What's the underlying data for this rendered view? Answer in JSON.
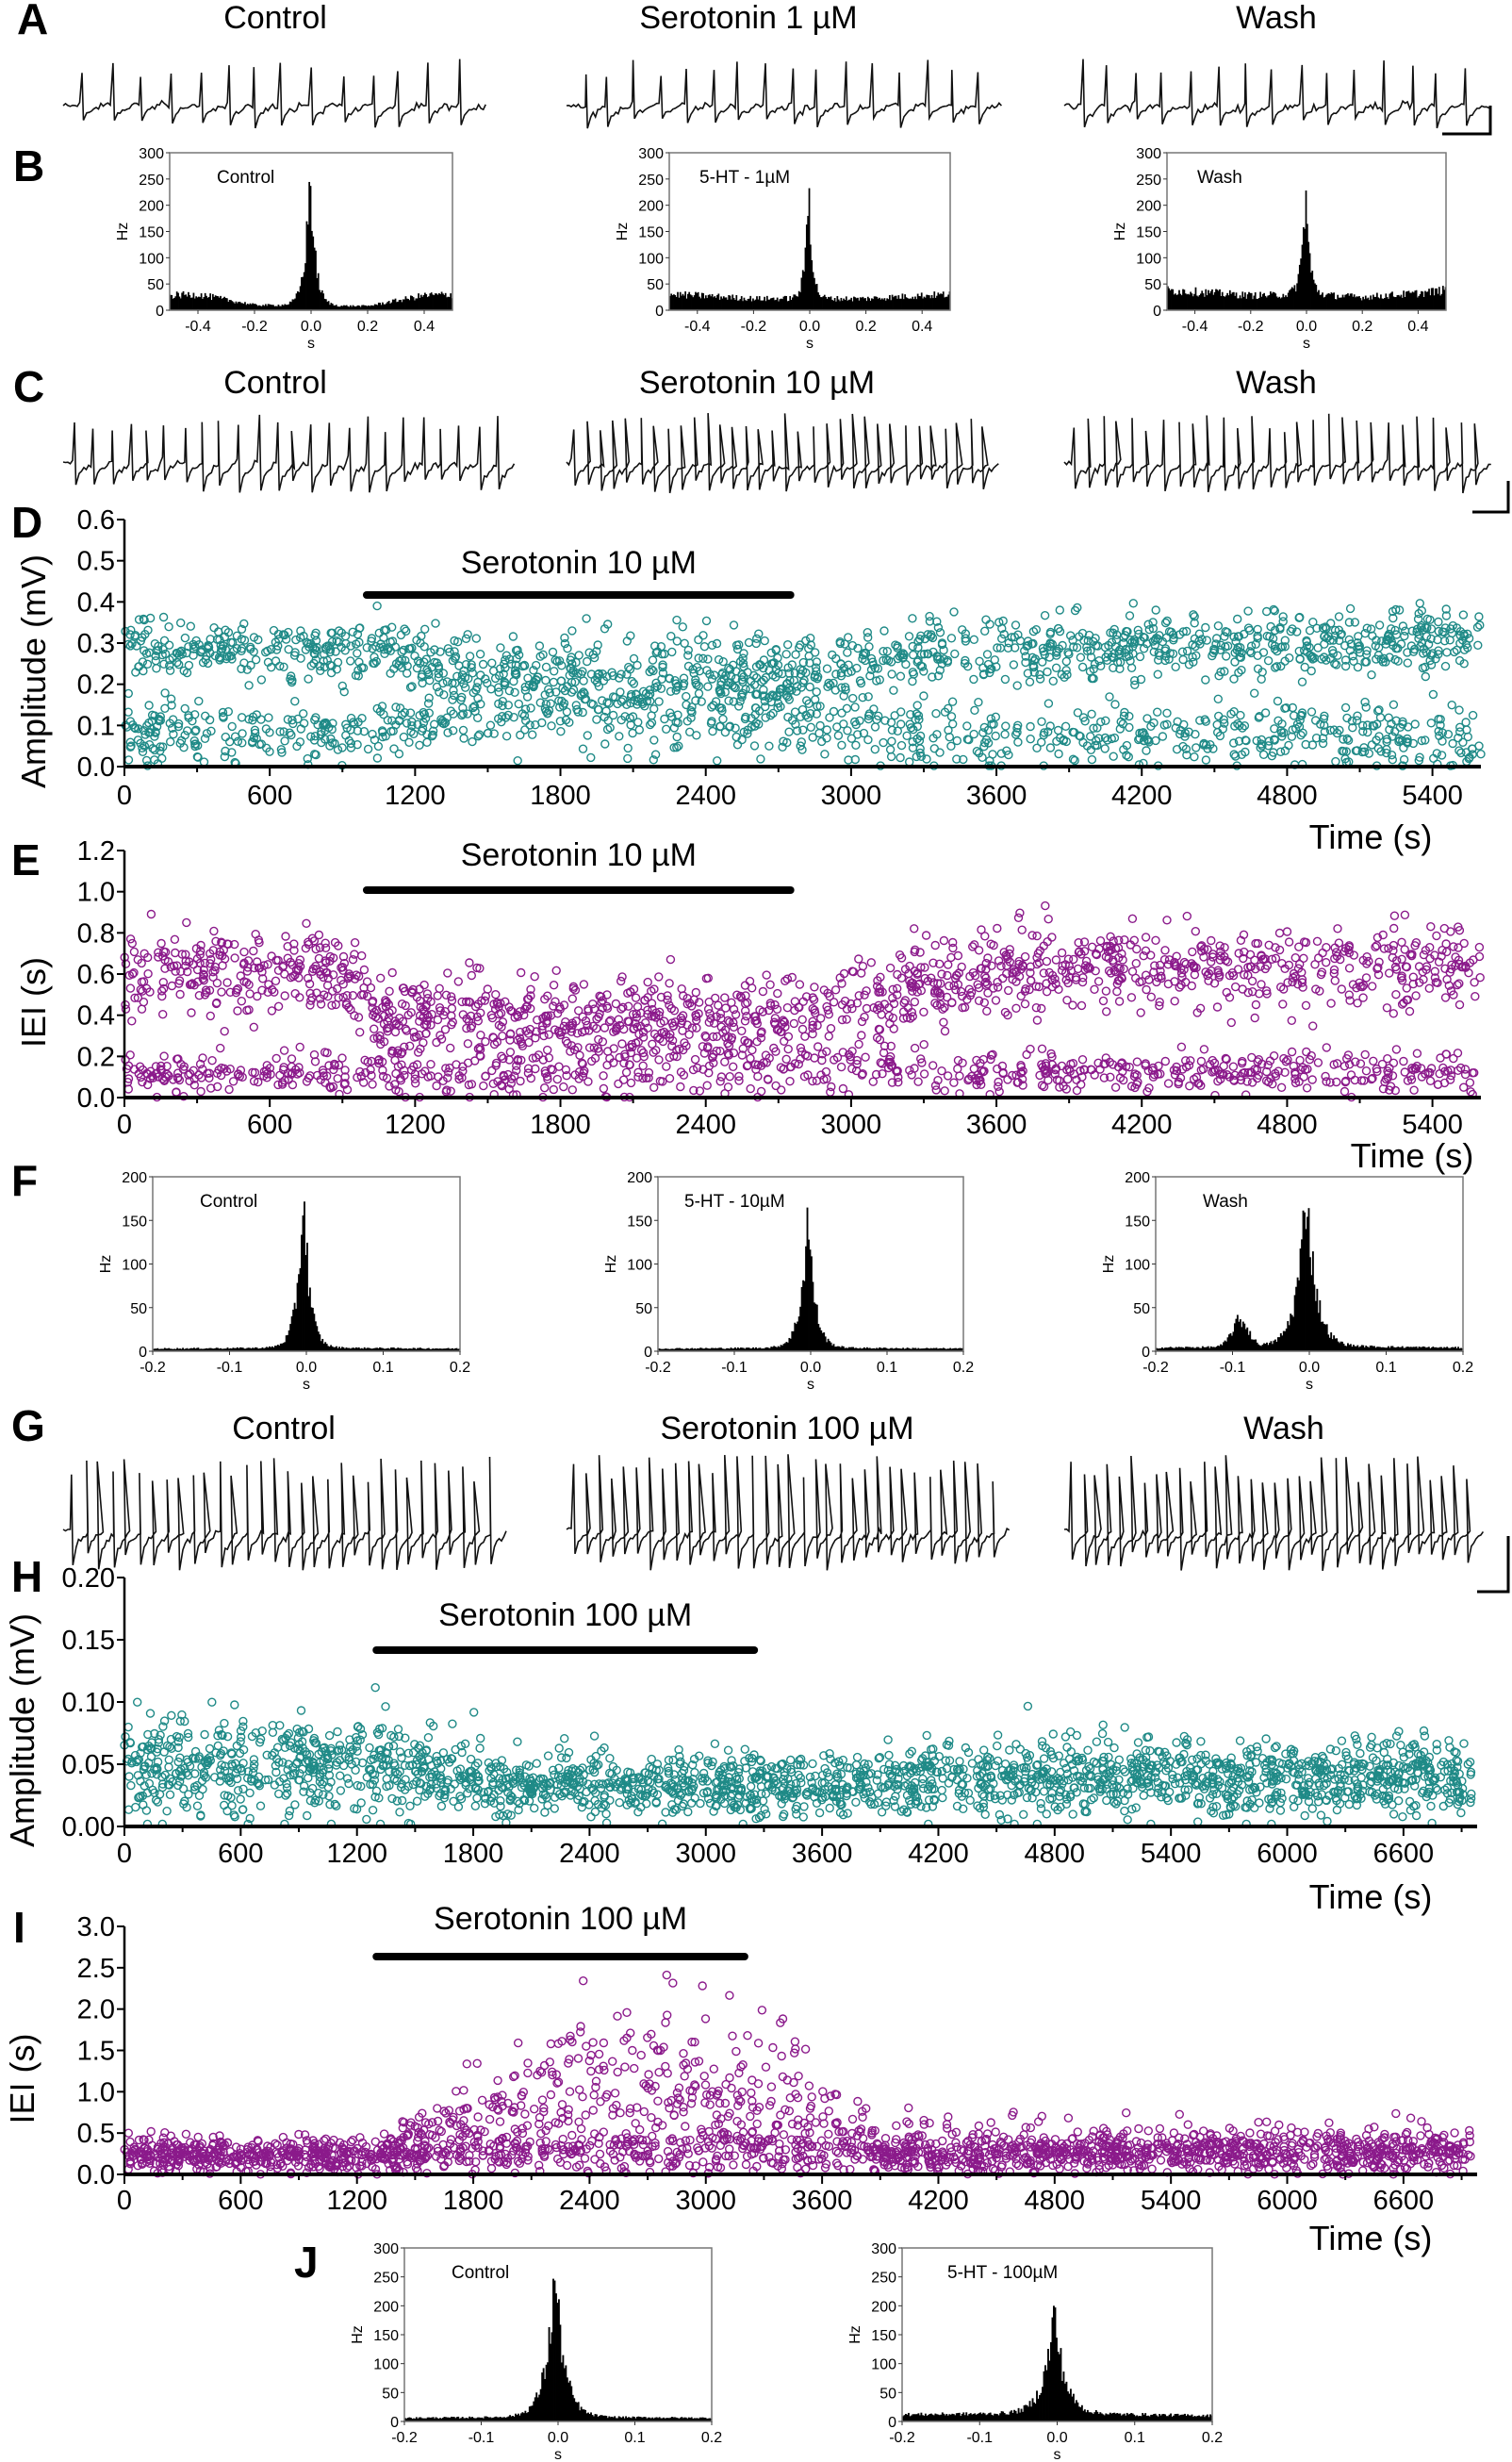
{
  "letters": {
    "A": "A",
    "B": "B",
    "C": "C",
    "D": "D",
    "E": "E",
    "F": "F",
    "G": "G",
    "H": "H",
    "I": "I",
    "J": "J"
  },
  "chart_data": [
    {
      "id": "A",
      "type": "line",
      "subtype": "voltage-trace",
      "titles": [
        "Control",
        "Serotonin 1 µM",
        "Wash"
      ],
      "spikes_per_trace": [
        14,
        16,
        15
      ],
      "scale_bar": true
    },
    {
      "id": "B",
      "type": "bar",
      "subtype": "cross-correlogram",
      "xlabel": "s",
      "ylabel": "Hz",
      "xlim": [
        -0.5,
        0.5
      ],
      "ylim": [
        0,
        300
      ],
      "xticks": [
        "-0.4",
        "-0.2",
        "0.0",
        "0.2",
        "0.4"
      ],
      "xtick_values": [
        -0.4,
        -0.2,
        0,
        0.2,
        0.4
      ],
      "yticks": [
        "0",
        "50",
        "100",
        "150",
        "200",
        "250",
        "300"
      ],
      "ytick_values": [
        0,
        50,
        100,
        150,
        200,
        250,
        300
      ],
      "panels": [
        {
          "label": "Control",
          "peak_hz": 255,
          "peak_width": 0.018,
          "baseline_x": [
            -0.5,
            -0.4,
            -0.2,
            0,
            0.2,
            0.4,
            0.5
          ],
          "baseline_hz": [
            28,
            30,
            10,
            8,
            8,
            28,
            30
          ]
        },
        {
          "label": "5-HT - 1µM",
          "peak_hz": 235,
          "peak_width": 0.012,
          "baseline_x": [
            -0.5,
            -0.4,
            -0.2,
            0,
            0.2,
            0.4,
            0.5
          ],
          "baseline_hz": [
            30,
            28,
            22,
            22,
            22,
            28,
            30
          ]
        },
        {
          "label": "Wash",
          "peak_hz": 205,
          "peak_width": 0.014,
          "baseline_x": [
            -0.5,
            -0.4,
            -0.2,
            0,
            0.2,
            0.4,
            0.5
          ],
          "baseline_hz": [
            38,
            35,
            28,
            30,
            25,
            32,
            38
          ]
        }
      ]
    },
    {
      "id": "C",
      "type": "line",
      "subtype": "voltage-trace",
      "titles": [
        "Control",
        "Serotonin 10 µM",
        "Wash"
      ],
      "spikes_per_trace": [
        24,
        32,
        28
      ],
      "scale_bar": true
    },
    {
      "id": "D",
      "type": "scatter",
      "ylabel": "Amplitude (mV)",
      "xlabel": "Time (s)",
      "xlim": [
        0,
        5600
      ],
      "ylim": [
        0,
        0.6
      ],
      "xticks": [
        "0",
        "600",
        "1200",
        "1800",
        "2400",
        "3000",
        "3600",
        "4200",
        "4800",
        "5400"
      ],
      "xtick_values": [
        0,
        600,
        1200,
        1800,
        2400,
        3000,
        3600,
        4200,
        4800,
        5400
      ],
      "yticks": [
        "0.0",
        "0.1",
        "0.2",
        "0.3",
        "0.4",
        "0.5",
        "0.6"
      ],
      "ytick_values": [
        0,
        0.1,
        0.2,
        0.3,
        0.4,
        0.5,
        0.6
      ],
      "color": "#1f8a87",
      "treatment": {
        "label": "Serotonin 10 µM",
        "start": 1000,
        "end": 2750
      },
      "trend": {
        "t": [
          0,
          1000,
          1500,
          2800,
          3200,
          5600
        ],
        "upper_mean": [
          0.29,
          0.28,
          0.22,
          0.22,
          0.28,
          0.31
        ],
        "upper_sd": [
          0.035,
          0.035,
          0.05,
          0.05,
          0.04,
          0.04
        ],
        "lower_mean": [
          0.08,
          0.08,
          0.13,
          0.13,
          0.08,
          0.07
        ],
        "lower_sd": [
          0.035,
          0.035,
          0.05,
          0.05,
          0.04,
          0.04
        ],
        "upper_fraction": [
          0.6,
          0.6,
          0.55,
          0.55,
          0.6,
          0.6
        ]
      }
    },
    {
      "id": "E",
      "type": "scatter",
      "ylabel": "IEI (s)",
      "xlabel": "Time (s)",
      "xlim": [
        0,
        5600
      ],
      "ylim": [
        0,
        1.2
      ],
      "xticks": [
        "0",
        "600",
        "1200",
        "1800",
        "2400",
        "3000",
        "3600",
        "4200",
        "4800",
        "5400"
      ],
      "xtick_values": [
        0,
        600,
        1200,
        1800,
        2400,
        3000,
        3600,
        4200,
        4800,
        5400
      ],
      "yticks": [
        "0.0",
        "0.2",
        "0.4",
        "0.6",
        "0.8",
        "1.0",
        "1.2"
      ],
      "ytick_values": [
        0,
        0.2,
        0.4,
        0.6,
        0.8,
        1.0,
        1.2
      ],
      "color": "#8b1a8b",
      "treatment": {
        "label": "Serotonin 10 µM",
        "start": 1000,
        "end": 2750
      },
      "trend": {
        "t": [
          0,
          900,
          1100,
          2800,
          3600,
          5600
        ],
        "upper_mean": [
          0.6,
          0.6,
          0.38,
          0.38,
          0.63,
          0.63
        ],
        "upper_sd": [
          0.1,
          0.1,
          0.1,
          0.1,
          0.1,
          0.1
        ],
        "lower_mean": [
          0.12,
          0.12,
          0.12,
          0.15,
          0.12,
          0.12
        ],
        "lower_sd": [
          0.05,
          0.05,
          0.06,
          0.07,
          0.05,
          0.05
        ],
        "upper_fraction": [
          0.6,
          0.6,
          0.65,
          0.65,
          0.6,
          0.6
        ]
      }
    },
    {
      "id": "F",
      "type": "bar",
      "subtype": "cross-correlogram",
      "xlabel": "s",
      "ylabel": "Hz",
      "xlim": [
        -0.2,
        0.2
      ],
      "ylim": [
        0,
        200
      ],
      "xticks": [
        "-0.2",
        "-0.1",
        "0.0",
        "0.1",
        "0.2"
      ],
      "xtick_values": [
        -0.2,
        -0.1,
        0,
        0.1,
        0.2
      ],
      "yticks": [
        "0",
        "50",
        "100",
        "150",
        "200"
      ],
      "ytick_values": [
        0,
        50,
        100,
        150,
        200
      ],
      "panels": [
        {
          "label": "Control",
          "peak_hz": 185,
          "peak_width": 0.008,
          "baseline_x": [
            -0.2,
            0,
            0.2
          ],
          "baseline_hz": [
            3,
            4,
            3
          ]
        },
        {
          "label": "5-HT - 10µM",
          "peak_hz": 155,
          "peak_width": 0.009,
          "baseline_x": [
            -0.2,
            0,
            0.2
          ],
          "baseline_hz": [
            3,
            4,
            3
          ]
        },
        {
          "label": "Wash",
          "peak_hz": 185,
          "peak_width": 0.012,
          "baseline_x": [
            -0.2,
            0,
            0.2
          ],
          "baseline_hz": [
            4,
            6,
            4
          ],
          "secondary_peak": {
            "x": -0.09,
            "hz": 30
          }
        }
      ]
    },
    {
      "id": "G",
      "type": "line",
      "subtype": "voltage-trace",
      "titles": [
        "Control",
        "Serotonin 100 µM",
        "Wash"
      ],
      "spikes_per_trace": [
        32,
        34,
        34
      ],
      "scale_bar": true
    },
    {
      "id": "H",
      "type": "scatter",
      "ylabel": "Amplitude (mV)",
      "xlabel": "Time (s)",
      "xlim": [
        0,
        6980
      ],
      "ylim": [
        0,
        0.2
      ],
      "xticks": [
        "0",
        "600",
        "1200",
        "1800",
        "2400",
        "3000",
        "3600",
        "4200",
        "4800",
        "5400",
        "6000",
        "6600"
      ],
      "xtick_values": [
        0,
        600,
        1200,
        1800,
        2400,
        3000,
        3600,
        4200,
        4800,
        5400,
        6000,
        6600
      ],
      "yticks": [
        "0.00",
        "0.05",
        "0.10",
        "0.15",
        "0.20"
      ],
      "ytick_values": [
        0,
        0.05,
        0.1,
        0.15,
        0.2
      ],
      "color": "#1f8a87",
      "treatment": {
        "label": "Serotonin 100 µM",
        "start": 1300,
        "end": 3250
      },
      "trend": {
        "t": [
          0,
          1300,
          2000,
          3400,
          4600,
          6950
        ],
        "upper_mean": [
          0.05,
          0.048,
          0.033,
          0.033,
          0.04,
          0.04
        ],
        "upper_sd": [
          0.02,
          0.02,
          0.012,
          0.012,
          0.015,
          0.014
        ],
        "lower_mean": [
          0.05,
          0.048,
          0.033,
          0.033,
          0.04,
          0.04
        ],
        "lower_sd": [
          0.02,
          0.02,
          0.012,
          0.012,
          0.015,
          0.014
        ],
        "upper_fraction": [
          1,
          1,
          1,
          1,
          1,
          1
        ]
      }
    },
    {
      "id": "I",
      "type": "scatter",
      "ylabel": "IEI (s)",
      "xlabel": "Time (s)",
      "xlim": [
        0,
        6980
      ],
      "ylim": [
        0,
        3.0
      ],
      "xticks": [
        "0",
        "600",
        "1200",
        "1800",
        "2400",
        "3000",
        "3600",
        "4200",
        "4800",
        "5400",
        "6000",
        "6600"
      ],
      "xtick_values": [
        0,
        600,
        1200,
        1800,
        2400,
        3000,
        3600,
        4200,
        4800,
        5400,
        6000,
        6600
      ],
      "yticks": [
        "0.0",
        "0.5",
        "1.0",
        "1.5",
        "2.0",
        "2.5",
        "3.0"
      ],
      "ytick_values": [
        0,
        0.5,
        1,
        1.5,
        2,
        2.5,
        3
      ],
      "color": "#8b1a8b",
      "treatment": {
        "label": "Serotonin 100 µM",
        "start": 1300,
        "end": 3200
      },
      "trend": {
        "t": [
          0,
          1300,
          2400,
          3400,
          3900,
          6950
        ],
        "upper_mean": [
          0.22,
          0.24,
          1.0,
          0.9,
          0.3,
          0.3
        ],
        "upper_sd": [
          0.1,
          0.12,
          0.5,
          0.5,
          0.17,
          0.17
        ],
        "lower_mean": [
          0.22,
          0.24,
          0.3,
          0.3,
          0.25,
          0.25
        ],
        "lower_sd": [
          0.1,
          0.1,
          0.12,
          0.12,
          0.1,
          0.1
        ],
        "upper_fraction": [
          0.5,
          0.5,
          0.6,
          0.6,
          0.5,
          0.5
        ]
      }
    },
    {
      "id": "J",
      "type": "bar",
      "subtype": "cross-correlogram",
      "xlabel": "s",
      "ylabel": "Hz",
      "xlim": [
        -0.2,
        0.2
      ],
      "ylim": [
        0,
        300
      ],
      "xticks": [
        "-0.2",
        "-0.1",
        "0.0",
        "0.1",
        "0.2"
      ],
      "xtick_values": [
        -0.2,
        -0.1,
        0,
        0.1,
        0.2
      ],
      "yticks": [
        "0",
        "50",
        "100",
        "150",
        "200",
        "250",
        "300"
      ],
      "ytick_values": [
        0,
        50,
        100,
        150,
        200,
        250,
        300
      ],
      "panels": [
        {
          "label": "Control",
          "peak_hz": 250,
          "peak_width": 0.012,
          "baseline_x": [
            -0.2,
            0,
            0.2
          ],
          "baseline_hz": [
            6,
            8,
            6
          ]
        },
        {
          "label": "5-HT - 100µM",
          "peak_hz": 175,
          "peak_width": 0.013,
          "baseline_x": [
            -0.2,
            0,
            0.2
          ],
          "baseline_hz": [
            12,
            14,
            10
          ]
        }
      ]
    }
  ]
}
